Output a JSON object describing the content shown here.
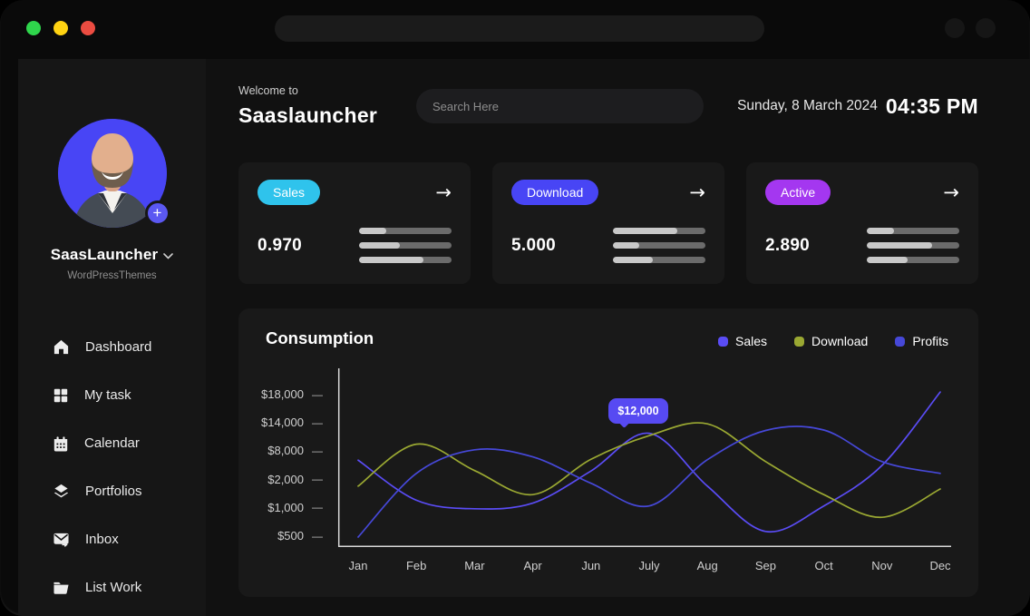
{
  "window": {
    "traffic_lights": {
      "green": "#2fd64c",
      "yellow": "#ffd312",
      "red": "#ec4c41"
    },
    "colors": {
      "frame": "#0a0a0a",
      "sidebar": "#161616",
      "main": "#111111",
      "card": "#191919"
    }
  },
  "sidebar": {
    "profile": {
      "name": "SaasLauncher",
      "org": "WordPressThemes",
      "avatar_bg": "#4845f5",
      "add_icon": "+"
    },
    "items": [
      {
        "icon": "home-icon",
        "label": "Dashboard"
      },
      {
        "icon": "grid-icon",
        "label": "My task"
      },
      {
        "icon": "calendar-icon",
        "label": "Calendar"
      },
      {
        "icon": "layers-icon",
        "label": "Portfolios"
      },
      {
        "icon": "inbox-icon",
        "label": "Inbox"
      },
      {
        "icon": "folder-icon",
        "label": "List Work"
      }
    ]
  },
  "header": {
    "welcome": "Welcome to",
    "app_name": "Saaslauncher",
    "search_placeholder": "Search Here",
    "date": "Sunday, 8 March 2024",
    "time": "04:35 PM"
  },
  "stats": {
    "cards": [
      {
        "badge": "Sales",
        "badge_color": "#2fc3ec",
        "value": "0.970",
        "bars": [
          29,
          44,
          70
        ]
      },
      {
        "badge": "Download",
        "badge_color": "#4845f5",
        "value": "5.000",
        "bars": [
          70,
          28,
          43
        ]
      },
      {
        "badge": "Active",
        "badge_color": "#a437f0",
        "value": "2.890",
        "bars": [
          29,
          71,
          44
        ]
      }
    ],
    "bar_colors": {
      "fill": "#c8c8c8",
      "track": "#6b6b6b"
    }
  },
  "chart_data": {
    "type": "line",
    "title": "Consumption",
    "categories": [
      "Jan",
      "Feb",
      "Mar",
      "Apr",
      "Jun",
      "July",
      "Aug",
      "Sep",
      "Oct",
      "Nov",
      "Dec"
    ],
    "y_ticks": {
      "labels": [
        "$500",
        "$1,000",
        "$2,000",
        "$8,000",
        "$14,000",
        "$18,000"
      ],
      "values": [
        500,
        1000,
        2000,
        8000,
        14000,
        18000
      ]
    },
    "series": [
      {
        "name": "Sales",
        "color": "#5a4cf5",
        "values": [
          6300,
          1300,
          1000,
          1200,
          4000,
          12000,
          1800,
          600,
          1100,
          5200,
          18500
        ]
      },
      {
        "name": "Download",
        "color": "#9aa832",
        "values": [
          1800,
          9700,
          4100,
          1500,
          6500,
          11500,
          14000,
          6000,
          1500,
          850,
          1700
        ]
      },
      {
        "name": "Profits",
        "color": "#4648d8",
        "values": [
          500,
          3500,
          8500,
          7000,
          1900,
          1100,
          6400,
          12600,
          12700,
          6000,
          3500
        ]
      }
    ],
    "tooltip": {
      "label": "$12,000",
      "series": "Sales",
      "category": "July",
      "value": 12000,
      "color": "#574af2"
    },
    "grid": false,
    "legend_position": "top-right",
    "axis_color": "#d8d8d8"
  }
}
